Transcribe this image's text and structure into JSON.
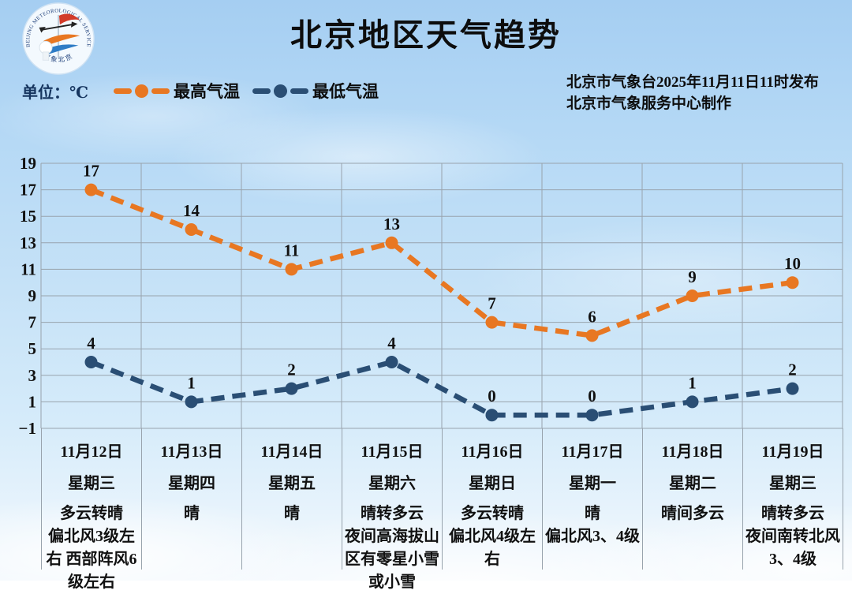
{
  "header": {
    "title": "北京地区天气趋势",
    "issued_line1": "北京市气象台2025年11月11日11时发布",
    "issued_line2": "北京市气象服务中心制作",
    "unit_label": "单位：℃",
    "logo": {
      "top_text": "BEIJING METEOROLOGICAL SERVICE",
      "bottom_text": "气象北京"
    }
  },
  "colors": {
    "high_series": "#e87722",
    "low_series": "#2a4e74",
    "grid": "#98a3ad",
    "unit_text": "#16355f",
    "label_text": "#111111"
  },
  "legend": [
    {
      "label": "最高气温",
      "color": "#e87722"
    },
    {
      "label": "最低气温",
      "color": "#2a4e74"
    }
  ],
  "chart_data": {
    "type": "line",
    "title": "北京地区天气趋势",
    "ylabel": "℃",
    "ylim": [
      -1,
      19
    ],
    "yticks": [
      19,
      17,
      15,
      13,
      11,
      9,
      7,
      5,
      3,
      1,
      -1
    ],
    "grid": true,
    "legend_position": "top-left",
    "line_style": "dashed",
    "categories": [
      {
        "date": "11月12日",
        "weekday": "星期三",
        "weather": [
          "多云转晴",
          "偏北风3级左右 西部阵风6级左右"
        ]
      },
      {
        "date": "11月13日",
        "weekday": "星期四",
        "weather": [
          "晴"
        ]
      },
      {
        "date": "11月14日",
        "weekday": "星期五",
        "weather": [
          "晴"
        ]
      },
      {
        "date": "11月15日",
        "weekday": "星期六",
        "weather": [
          "晴转多云",
          "夜间高海拔山区有零星小雪或小雪"
        ]
      },
      {
        "date": "11月16日",
        "weekday": "星期日",
        "weather": [
          "多云转晴",
          "偏北风4级左右"
        ]
      },
      {
        "date": "11月17日",
        "weekday": "星期一",
        "weather": [
          "晴",
          "偏北风3、4级"
        ]
      },
      {
        "date": "11月18日",
        "weekday": "星期二",
        "weather": [
          "晴间多云"
        ]
      },
      {
        "date": "11月19日",
        "weekday": "星期三",
        "weather": [
          "晴转多云",
          "夜间南转北风3、4级"
        ]
      }
    ],
    "series": [
      {
        "name": "最高气温",
        "color": "#e87722",
        "values": [
          17,
          14,
          11,
          13,
          7,
          6,
          9,
          10
        ]
      },
      {
        "name": "最低气温",
        "color": "#2a4e74",
        "values": [
          4,
          1,
          2,
          4,
          0,
          0,
          1,
          2
        ]
      }
    ]
  }
}
